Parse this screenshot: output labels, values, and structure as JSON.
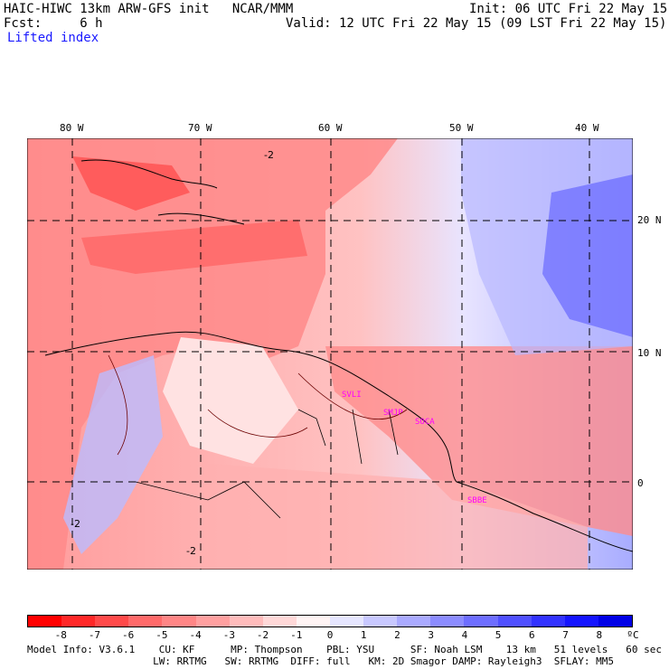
{
  "header": {
    "title": "HAIC-HIWC 13km ARW-GFS init   NCAR/MMM",
    "init": "Init: 06 UTC Fri 22 May 15",
    "fcst": "Fcst:     6 h",
    "valid": "Valid: 12 UTC Fri 22 May 15 (09 LST Fri 22 May 15)",
    "field": "Lifted index"
  },
  "map": {
    "lon_labels": [
      "80 W",
      "70 W",
      "60 W",
      "50 W",
      "40 W"
    ],
    "lat_labels": [
      "20 N",
      "10 N",
      "0"
    ],
    "contour_labels": [
      "-2",
      "-2",
      "-2"
    ],
    "cities": [
      "SVLI",
      "SMJP",
      "SOCA",
      "SBBE"
    ]
  },
  "colorbar": {
    "ticks": [
      "-8",
      "-7",
      "-6",
      "-5",
      "-4",
      "-3",
      "-2",
      "-1",
      "0",
      "1",
      "2",
      "3",
      "4",
      "5",
      "6",
      "7",
      "8",
      "ºC"
    ],
    "colors": [
      "#ff0000",
      "#ff2828",
      "#ff4a4a",
      "#ff6a6a",
      "#ff8686",
      "#ffa0a0",
      "#ffbcbc",
      "#ffd8d8",
      "#fff4f4",
      "#e6e6ff",
      "#c8c8ff",
      "#aaaaff",
      "#8c8cff",
      "#6e6eff",
      "#5050ff",
      "#3232ff",
      "#1414ff",
      "#0000e6"
    ]
  },
  "model_info": {
    "line1": "Model Info: V3.6.1    CU: KF      MP: Thompson    PBL: YSU      SF: Noah LSM    13 km   51 levels   60 sec",
    "line2": "                     LW: RRTMG   SW: RRTMG  DIFF: full   KM: 2D Smagor DAMP: Rayleigh3  SFLAY: MM5"
  }
}
